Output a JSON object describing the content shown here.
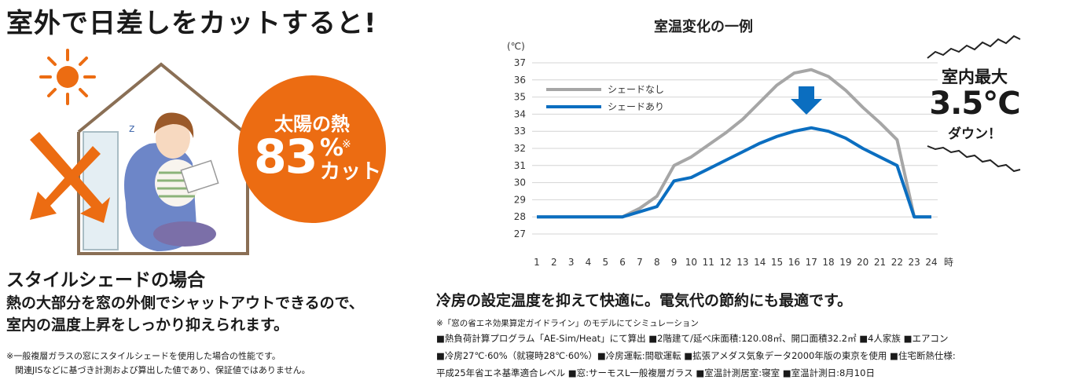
{
  "headline": "室外で日差しをカットすると!",
  "badge": {
    "top": "太陽の熱",
    "number": "83",
    "percent": "%",
    "mark": "※",
    "cut": "カット"
  },
  "subheading": "スタイルシェードの場合",
  "description": [
    "熱の大部分を窓の外側でシャットアウトできるので、",
    "室内の温度上昇をしっかり抑えられます。"
  ],
  "footnote": [
    "※一般複層ガラスの窓にスタイルシェードを使用した場合の性能です。",
    "　関連JISなどに基づき計測および算出した値であり、保証値ではありません。"
  ],
  "callout": {
    "line1": "室内最大",
    "line2": "3.5℃",
    "line3": "ダウン！"
  },
  "lead": "冷房の設定温度を抑えて快適に。電気代の節約にも最適です。",
  "conditions_note": "※「窓の省エネ効果算定ガイドライン」のモデルにてシミュレーション",
  "conditions": [
    "■熱負荷計算プログラム「AE-Sim/Heat」にて算出 ■2階建て/延べ床面積:120.08㎡、開口面積32.2㎡ ■4人家族 ■エアコン",
    "■冷房27℃·60%（就寝時28℃·60%）■冷房運転:間歇運転 ■拡張アメダス気象データ2000年版の東京を使用 ■住宅断熱仕様:",
    "平成25年省エネ基準適合レベル ■窓:サーモスL一般複層ガラス ■室温計測居室:寝室 ■室温計測日:8月10日"
  ],
  "colors": {
    "accent_orange": "#ec6c12",
    "series_gray": "#a6a6a6",
    "series_blue": "#0b6ec0",
    "arrow_blue": "#0b6ec0"
  },
  "chart_data": {
    "type": "line",
    "title": "室温変化の一例",
    "ylabel": "(℃)",
    "xlabel_unit": "時",
    "x": [
      1,
      2,
      3,
      4,
      5,
      6,
      7,
      8,
      9,
      10,
      11,
      12,
      13,
      14,
      15,
      16,
      17,
      18,
      19,
      20,
      21,
      22,
      23,
      24
    ],
    "ylim": [
      27,
      37
    ],
    "yticks": [
      27,
      28,
      29,
      30,
      31,
      32,
      33,
      34,
      35,
      36,
      37
    ],
    "grid": true,
    "legend_position": "top-left",
    "series": [
      {
        "name": "シェードなし",
        "color": "#a6a6a6",
        "values": [
          28,
          28,
          28,
          28,
          28,
          28,
          28.5,
          29.2,
          31.0,
          31.5,
          32.2,
          32.9,
          33.7,
          34.7,
          35.7,
          36.4,
          36.6,
          36.2,
          35.4,
          34.4,
          33.5,
          32.5,
          28,
          28
        ]
      },
      {
        "name": "シェードあり",
        "color": "#0b6ec0",
        "values": [
          28,
          28,
          28,
          28,
          28,
          28,
          28.3,
          28.6,
          30.1,
          30.3,
          30.8,
          31.3,
          31.8,
          32.3,
          32.7,
          33.0,
          33.2,
          33.0,
          32.6,
          32.0,
          31.5,
          31.0,
          28,
          28
        ]
      }
    ]
  }
}
